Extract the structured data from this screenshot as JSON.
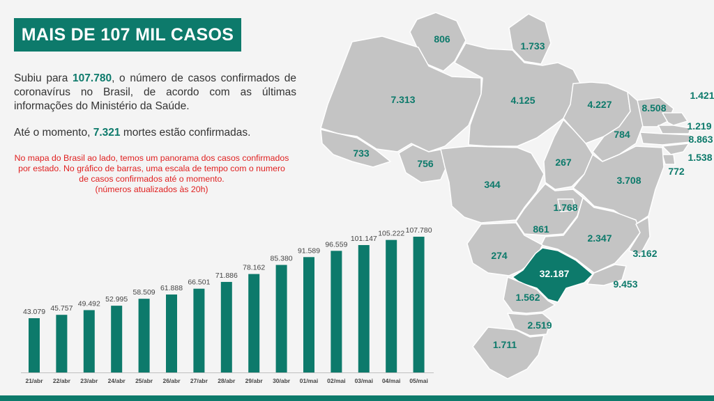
{
  "header": {
    "title": "MAIS DE 107 MIL CASOS"
  },
  "intro": {
    "p1_before": "Subiu para ",
    "p1_value": "107.780",
    "p1_after": ", o número de casos confirmados de coronavírus no Brasil, de acordo com as últimas informações do Ministério da Saúde.",
    "p2_before": "Até o momento, ",
    "p2_value": "7.321",
    "p2_after": " mortes estão confirmadas."
  },
  "note": {
    "text": "No mapa do Brasil ao lado, temos um panorama dos casos confirmados por estado. No gráfico de barras, uma escala de tempo com o numero de casos confirmados até o momento.",
    "updated": "(números atualizados às 20h)"
  },
  "colors": {
    "accent": "#0d7a6b",
    "map_gray": "#c4c4c4",
    "highlight": "#0d7a6b",
    "note": "#e02020"
  },
  "chart_data": {
    "type": "bar",
    "categories": [
      "21/abr",
      "22/abr",
      "23/abr",
      "24/abr",
      "25/abr",
      "26/abr",
      "27/abr",
      "28/abr",
      "29/abr",
      "30/abr",
      "01/mai",
      "02/mai",
      "03/mai",
      "04/mai",
      "05/mai"
    ],
    "values": [
      43079,
      45757,
      49492,
      52995,
      58509,
      61888,
      66501,
      71886,
      78162,
      85380,
      91589,
      96559,
      101147,
      105222,
      107780
    ],
    "labels": [
      "43.079",
      "45.757",
      "49.492",
      "52.995",
      "58.509",
      "61.888",
      "66.501",
      "71.886",
      "78.162",
      "85.380",
      "91.589",
      "96.559",
      "101.147",
      "105.222",
      "107.780"
    ],
    "ylim": [
      0,
      110000
    ],
    "grid": false,
    "legend": "none"
  },
  "map": {
    "states": [
      {
        "id": "RR",
        "label": "806"
      },
      {
        "id": "AP",
        "label": "1.733"
      },
      {
        "id": "AM",
        "label": "7.313"
      },
      {
        "id": "PA",
        "label": "4.125"
      },
      {
        "id": "MA",
        "label": "4.227"
      },
      {
        "id": "CE",
        "label": "8.508"
      },
      {
        "id": "RN",
        "label": "1.421"
      },
      {
        "id": "PB",
        "label": "1.219"
      },
      {
        "id": "PE",
        "label": "8.863"
      },
      {
        "id": "AL",
        "label": "1.538"
      },
      {
        "id": "SE",
        "label": "772"
      },
      {
        "id": "PI",
        "label": "784"
      },
      {
        "id": "AC",
        "label": "733"
      },
      {
        "id": "RO",
        "label": "756"
      },
      {
        "id": "MT",
        "label": "344"
      },
      {
        "id": "TO",
        "label": "267"
      },
      {
        "id": "BA",
        "label": "3.708"
      },
      {
        "id": "DF",
        "label": "1.768"
      },
      {
        "id": "GO",
        "label": "861"
      },
      {
        "id": "MG",
        "label": "2.347"
      },
      {
        "id": "ES",
        "label": "3.162"
      },
      {
        "id": "MS",
        "label": "274"
      },
      {
        "id": "SP",
        "label": "32.187"
      },
      {
        "id": "RJ",
        "label": "9.453"
      },
      {
        "id": "PR",
        "label": "1.562"
      },
      {
        "id": "SC",
        "label": "2.519"
      },
      {
        "id": "RS",
        "label": "1.711"
      }
    ]
  }
}
